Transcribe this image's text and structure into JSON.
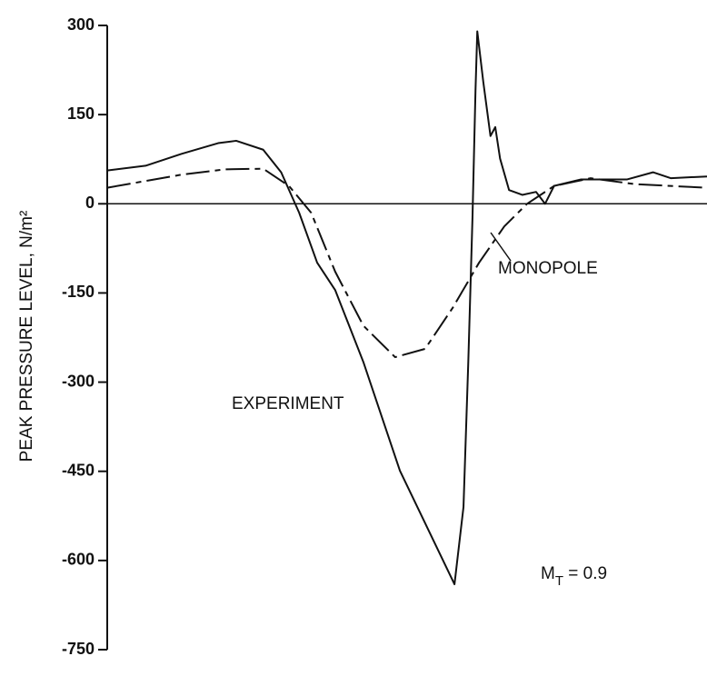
{
  "chart_data": {
    "type": "line",
    "ylabel": "PEAK PRESSURE LEVEL, N/m²",
    "annotation": {
      "main": "M",
      "subscript": "T",
      "rest": " = 0.9"
    },
    "xlim": [
      0,
      100
    ],
    "ylim": [
      -750,
      300
    ],
    "yticks": [
      300,
      150,
      0,
      -150,
      -300,
      -450,
      -600,
      -750
    ],
    "series": [
      {
        "name": "EXPERIMENT",
        "color": "#111111",
        "dash": "none",
        "x": [
          0,
          6.4,
          12.4,
          18.5,
          21.5,
          26,
          29,
          32,
          35,
          38,
          42.7,
          48.8,
          57.9,
          59.4,
          60.2,
          60.9,
          61.4,
          61.7,
          62.7,
          63.9,
          64.7,
          65.5,
          67,
          69.2,
          71.5,
          73,
          74.5,
          79,
          86.7,
          91,
          94,
          100
        ],
        "values": [
          56,
          64,
          84,
          102,
          106,
          91,
          53,
          -15,
          -99,
          -145,
          -266,
          -449,
          -640,
          -510,
          -266,
          -23,
          190,
          290,
          205,
          114,
          129,
          76,
          23,
          15,
          20,
          0,
          30,
          41,
          41,
          53,
          43,
          46
        ]
      },
      {
        "name": "MONOPOLE",
        "color": "#111111",
        "dash": "26 6 6 6",
        "x": [
          0,
          12.4,
          19.7,
          26,
          30.3,
          34,
          38,
          42.7,
          48,
          53,
          57.6,
          62,
          66.2,
          70,
          74.5,
          80.6,
          88,
          100
        ],
        "values": [
          27,
          49,
          58,
          59,
          30,
          -15,
          -114,
          -205,
          -258,
          -244,
          -175,
          -99,
          -38,
          0,
          30,
          43,
          33,
          27
        ]
      }
    ]
  }
}
